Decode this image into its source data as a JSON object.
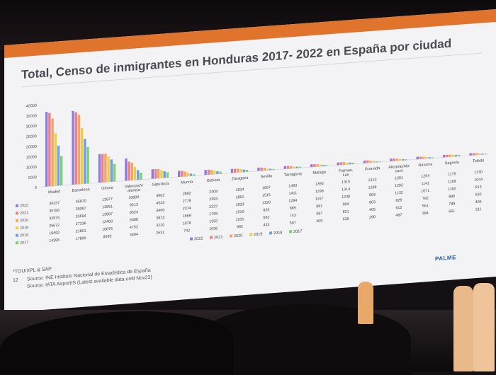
{
  "slide": {
    "title": "Total, Censo de inmigrantes en Honduras 2017- 2022 en España por ciudad",
    "footnote_1": "*TOU/XPL & SAP",
    "page_number": "12",
    "source_1": "Source: INE Instituto Nacional de Estadística de España",
    "source_2": "Source: IATA AirportIS (Latest available data until Nov23)",
    "logo": "PALME"
  },
  "colors": {
    "2022": "#8e7be0",
    "2021": "#ee7f83",
    "2020": "#efa46a",
    "2019": "#eccf46",
    "2018": "#6e9df0",
    "2017": "#7dcf6f",
    "accent": "#e0742c"
  },
  "chart_data": {
    "type": "bar",
    "title": "Total, Censo de inmigrantes en Honduras 2017- 2022 en España por ciudad",
    "ylim": [
      0,
      40000
    ],
    "yticks": [
      "0",
      "5000",
      "10000",
      "15000",
      "20000",
      "25000",
      "30000",
      "35000",
      "40000"
    ],
    "categories": [
      "Madrid",
      "Barcelona",
      "Girona",
      "Valencia/V alencia",
      "Gipuzkoa",
      "Murcia",
      "Bizkaia",
      "Zaragoza",
      "Sevilla",
      "Tarragona",
      "Malaga",
      "Palmas, Las",
      "Granada",
      "Alicante/Ala cant",
      "Navarra",
      "Segovia",
      "Toledo"
    ],
    "series": [
      {
        "name": "2022",
        "values": [
          36337,
          35870,
          13877,
          10800,
          4602,
          2892,
          2408,
          1934,
          1657,
          1493,
          1395,
          1315,
          1312,
          1291,
          1254,
          1175,
          1130
        ]
      },
      {
        "name": "2021",
        "values": [
          35785,
          35097,
          13851,
          9213,
          4543,
          2779,
          2393,
          1861,
          1515,
          1411,
          1298,
          1314,
          1288,
          1202,
          1141,
          1168,
          1044
        ]
      },
      {
        "name": "2020",
        "values": [
          32975,
          33694,
          13887,
          8524,
          4466,
          2374,
          2222,
          1833,
          1320,
          1284,
          1167,
          1248,
          983,
          1132,
          1071,
          1160,
          913
        ]
      },
      {
        "name": "2019",
        "values": [
          25672,
          27236,
          12403,
          6388,
          3873,
          1669,
          1768,
          1510,
          826,
          885,
          881,
          904,
          803,
          829,
          792,
          986,
          632
        ]
      },
      {
        "name": "2018",
        "values": [
          19492,
          21801,
          10876,
          4752,
          3220,
          1078,
          1350,
          1231,
          662,
          743,
          597,
          821,
          405,
          612,
          561,
          788,
          406
        ]
      },
      {
        "name": "2017",
        "values": [
          14285,
          17800,
          8595,
          3404,
          2631,
          742,
          1036,
          992,
          433,
          597,
          409,
          635,
          290,
          487,
          384,
          661,
          311
        ]
      }
    ],
    "legend_labels": [
      "2022",
      "2021",
      "2020",
      "2019",
      "2018",
      "2017"
    ],
    "legend_position": "bottom",
    "grid": false
  }
}
